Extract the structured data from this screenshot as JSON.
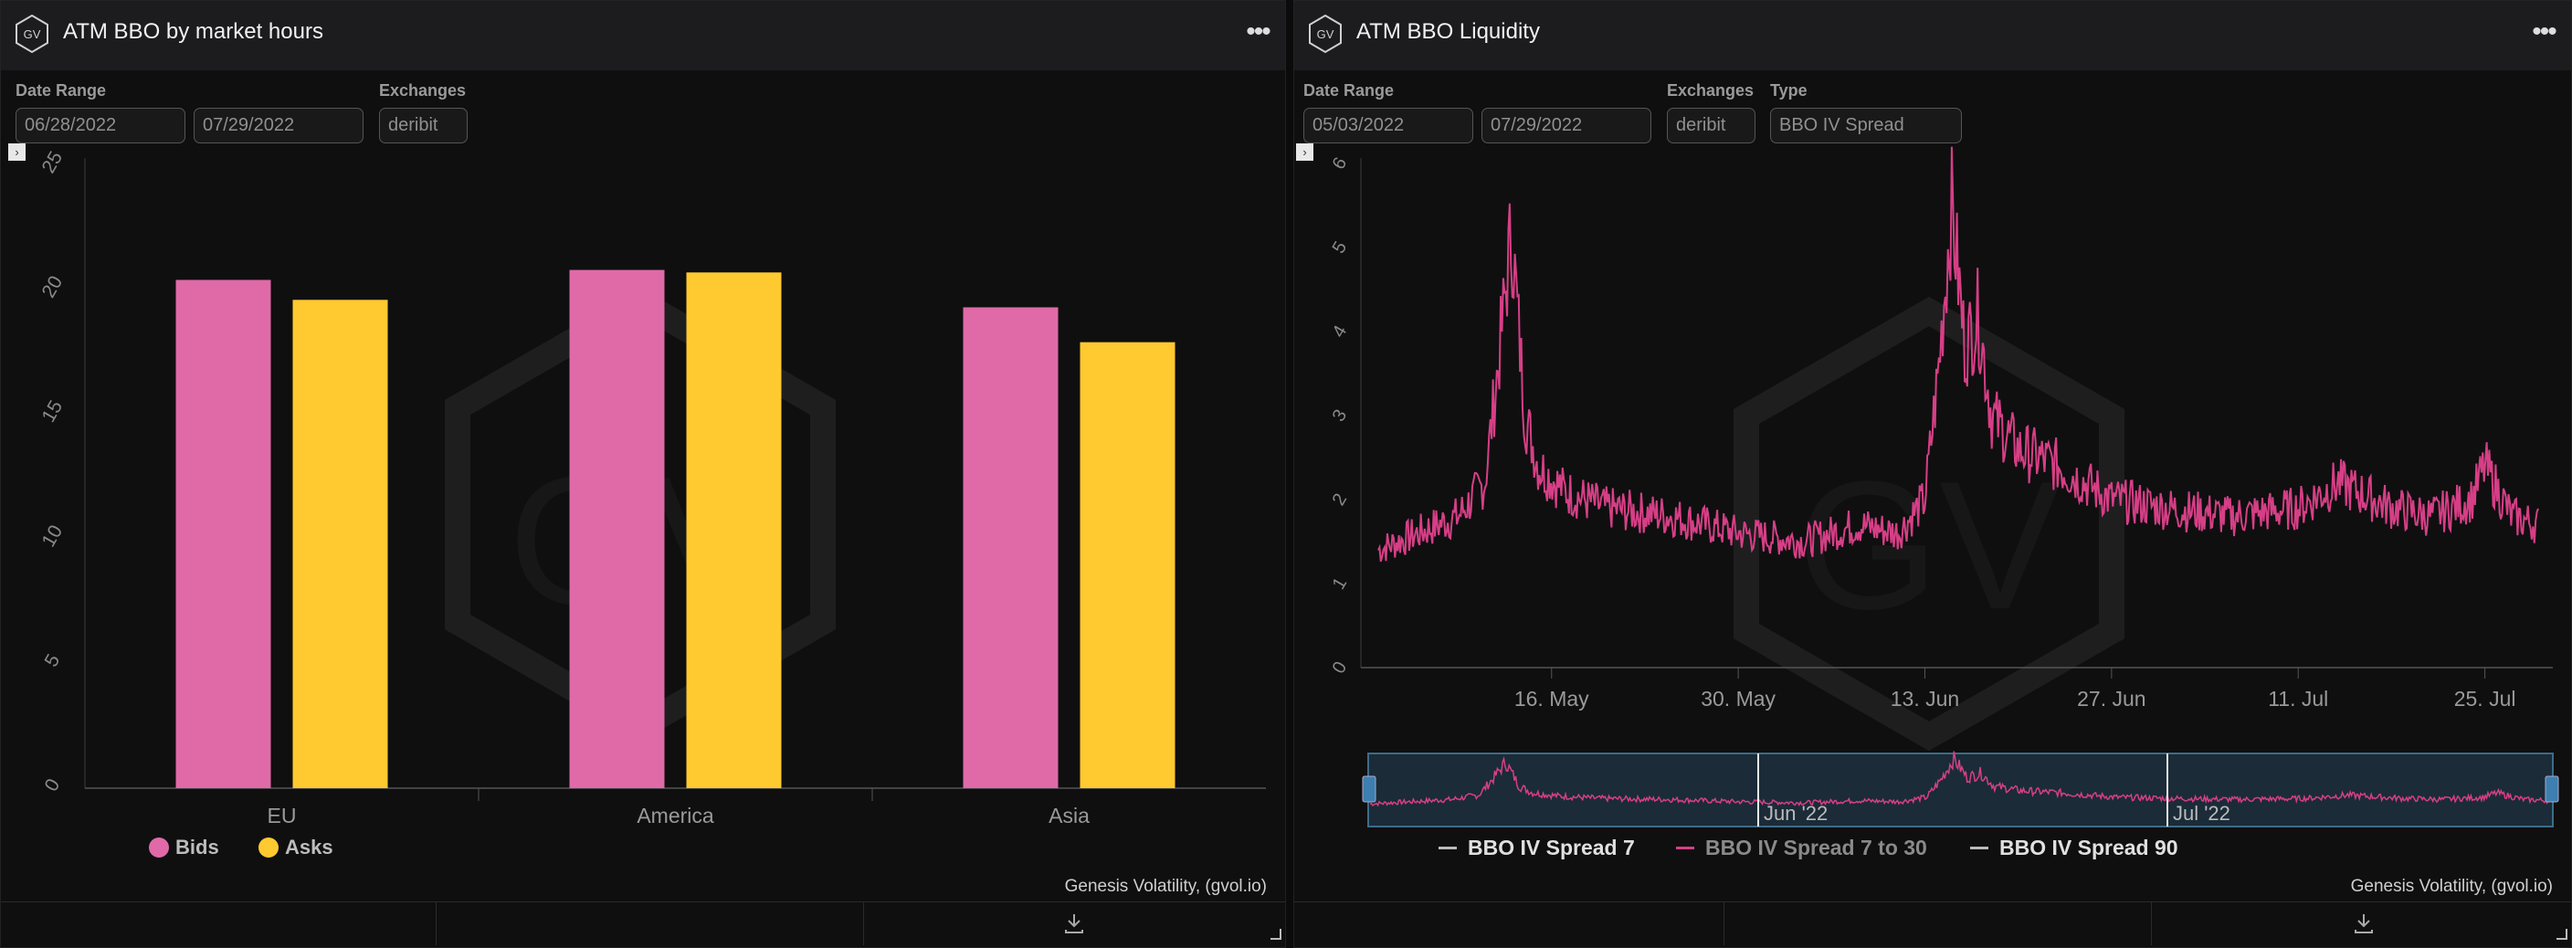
{
  "left_panel": {
    "title": "ATM BBO by market hours",
    "menu_label": "•••",
    "filters": {
      "date_range_label": "Date Range",
      "start_date": "06/28/2022",
      "end_date": "07/29/2022",
      "exchanges_label": "Exchanges",
      "exchange": "deribit"
    },
    "watermark": "GV",
    "credits": "Genesis Volatility, (gvol.io)"
  },
  "right_panel": {
    "title": "ATM BBO Liquidity",
    "menu_label": "•••",
    "filters": {
      "date_range_label": "Date Range",
      "start_date": "05/03/2022",
      "end_date": "07/29/2022",
      "exchanges_label": "Exchanges",
      "exchange": "deribit",
      "type_label": "Type",
      "type": "BBO IV Spread"
    },
    "navigator_labels": [
      "Jun '22",
      "Jul '22"
    ],
    "watermark": "GV",
    "credits": "Genesis Volatility, (gvol.io)"
  },
  "colors": {
    "bids": "#e06aa7",
    "asks": "#ffc930",
    "line": "#d63f86",
    "background": "#0f0f10"
  },
  "chart_data": [
    {
      "type": "bar",
      "categories": [
        "EU",
        "America",
        "Asia"
      ],
      "series": [
        {
          "name": "Bids",
          "values": [
            20.4,
            20.8,
            19.3
          ]
        },
        {
          "name": "Asks",
          "values": [
            19.6,
            20.7,
            17.9
          ]
        }
      ],
      "ylim": [
        0,
        25
      ],
      "yticks": [
        "0",
        "5",
        "10",
        "15",
        "20",
        "25"
      ],
      "legend_position": "bottom-left",
      "grid": false
    },
    {
      "type": "line",
      "x_range": [
        "2022-05-03",
        "2022-07-29"
      ],
      "xticks": [
        "16. May",
        "30. May",
        "13. Jun",
        "27. Jun",
        "11. Jul",
        "25. Jul"
      ],
      "ylim": [
        0,
        6
      ],
      "yticks": [
        "0",
        "1",
        "2",
        "3",
        "4",
        "5",
        "6"
      ],
      "series": [
        {
          "name": "BBO IV Spread 7",
          "visible": false,
          "values": []
        },
        {
          "name": "BBO IV Spread 7 to 30",
          "visible": true,
          "x": [
            "2022-05-03",
            "2022-05-06",
            "2022-05-09",
            "2022-05-11",
            "2022-05-12",
            "2022-05-13",
            "2022-05-14",
            "2022-05-15",
            "2022-05-17",
            "2022-05-20",
            "2022-05-25",
            "2022-05-30",
            "2022-06-04",
            "2022-06-08",
            "2022-06-11",
            "2022-06-13",
            "2022-06-14",
            "2022-06-15",
            "2022-06-16",
            "2022-06-17",
            "2022-06-18",
            "2022-06-20",
            "2022-06-23",
            "2022-06-27",
            "2022-07-01",
            "2022-07-06",
            "2022-07-11",
            "2022-07-14",
            "2022-07-18",
            "2022-07-21",
            "2022-07-24",
            "2022-07-25",
            "2022-07-27",
            "2022-07-29"
          ],
          "values": [
            1.4,
            1.6,
            1.8,
            2.2,
            3.6,
            5.2,
            3.0,
            2.4,
            2.1,
            1.9,
            1.8,
            1.6,
            1.5,
            1.7,
            1.6,
            2.0,
            3.5,
            5.5,
            3.8,
            4.2,
            3.0,
            2.6,
            2.4,
            2.0,
            1.9,
            1.8,
            1.9,
            2.2,
            1.9,
            1.8,
            2.0,
            2.4,
            1.8,
            1.7
          ]
        },
        {
          "name": "BBO IV Spread 90",
          "visible": false,
          "values": []
        }
      ],
      "legend_position": "bottom",
      "grid": false
    }
  ]
}
